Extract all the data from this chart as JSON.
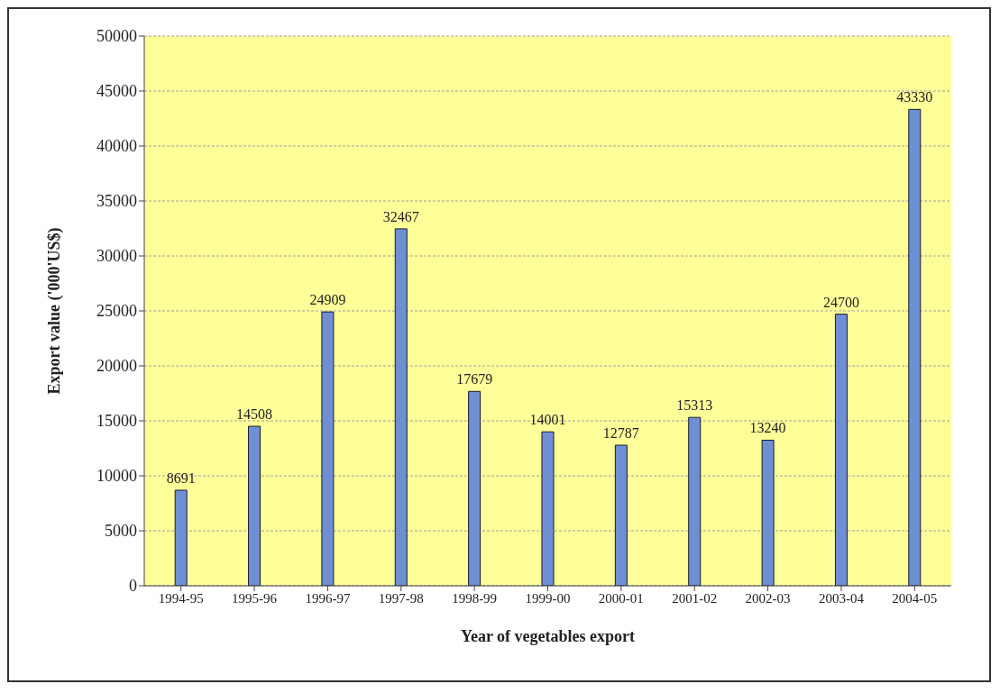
{
  "chart_data": {
    "type": "bar",
    "xlabel": "Year of vegetables export",
    "ylabel": "Export value ('000'US$)",
    "categories": [
      "1994-95",
      "1995-96",
      "1996-97",
      "1997-98",
      "1998-99",
      "1999-00",
      "2000-01",
      "2001-02",
      "2002-03",
      "2003-04",
      "2004-05"
    ],
    "values": [
      8691,
      14508,
      24909,
      32467,
      17679,
      14001,
      12787,
      15313,
      13240,
      24700,
      43330
    ],
    "color": "#6f8fd3",
    "ylim": [
      0,
      50000
    ],
    "yticks": [
      0,
      5000,
      10000,
      15000,
      20000,
      25000,
      30000,
      35000,
      40000,
      45000,
      50000
    ],
    "grid": "y",
    "data_labels": true
  }
}
